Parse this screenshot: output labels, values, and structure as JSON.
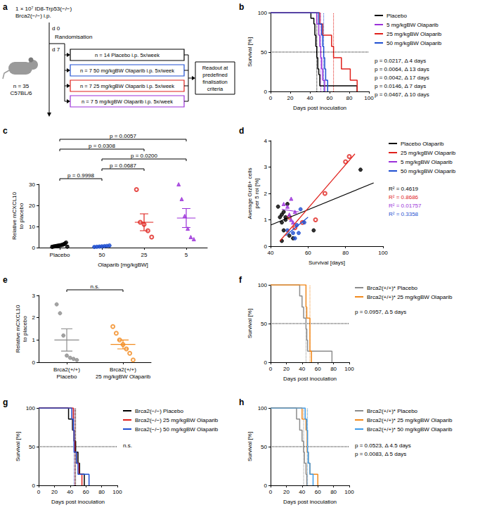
{
  "diagram": {
    "panel": "a",
    "inoculation": [
      "1 × 10⁷ ID8-Trp53(−/−)",
      "Brca2(−/−) i.p."
    ],
    "mice": [
      "n = 35",
      "C57BL/6"
    ],
    "day_start": "d 0",
    "day_randomisation": "d 7",
    "randomisation": "Randomisation",
    "groups": [
      {
        "text": "n = 14 Placebo i.p. 5x/week",
        "color": "#000000"
      },
      {
        "text": "n = 7 50 mg/kgBW Olaparib i.p. 5x/week",
        "color": "#1f4fd1"
      },
      {
        "text": "n = 7 25 mg/kgBW Olaparib i.p. 5x/week",
        "color": "#e0201b"
      },
      {
        "text": "n = 7 5 mg/kgBW Olaparib i.p. 5x/week",
        "color": "#9b30d9"
      }
    ],
    "readout": "Readout at predefined finalisation criteria"
  },
  "chart_data": [
    {
      "panel": "b",
      "type": "line",
      "line_style": "step",
      "x_label": "Days post inoculation",
      "y_label": "Survival [%]",
      "xlim": [
        0,
        100
      ],
      "xticks": [
        0,
        20,
        40,
        60,
        80,
        100
      ],
      "ylim": [
        0,
        100
      ],
      "yticks": [
        0,
        50,
        100
      ],
      "reference_y": 50,
      "grid": false,
      "legend": "right",
      "series": [
        {
          "name": "Placebo",
          "color": "#000000",
          "x": [
            0,
            41,
            44,
            45,
            46,
            47,
            48,
            49,
            50,
            88
          ],
          "values": [
            100,
            92.9,
            85.7,
            71.4,
            57.1,
            42.9,
            28.6,
            21.4,
            7.1,
            0
          ],
          "median": 47
        },
        {
          "name": "5 mg/kgBW Olaparib",
          "color": "#9b30d9",
          "x": [
            0,
            47,
            49,
            50,
            51,
            52,
            53,
            55
          ],
          "values": [
            100,
            85.7,
            71.4,
            57.1,
            42.9,
            28.6,
            14.3,
            0
          ],
          "median": 51
        },
        {
          "name": "25 mg/kgBW Olaparib",
          "color": "#e0201b",
          "x": [
            0,
            50,
            53,
            62,
            64,
            72,
            81,
            88
          ],
          "values": [
            100,
            85.7,
            71.4,
            57.1,
            42.9,
            28.6,
            14.3,
            0
          ],
          "median": 64
        },
        {
          "name": "50 mg/kgBW Olaparib",
          "color": "#1f4fd1",
          "x": [
            0,
            49,
            52,
            53,
            54,
            55,
            56,
            58
          ],
          "values": [
            100,
            85.7,
            71.4,
            57.1,
            42.9,
            28.6,
            14.3,
            0
          ],
          "median": 54
        }
      ],
      "annotations": [
        "p = 0.0217, Δ 4 days",
        "p = 0.0064, Δ 13 days",
        "p = 0.0042, Δ 17 days",
        "p = 0.0146, Δ 7 days",
        "p = 0.0467, Δ 10 days"
      ]
    },
    {
      "panel": "c",
      "type": "strip",
      "x_label": "Olaparib [mg/kgBW]",
      "y_label": "Relative mCXCL10 to placebo",
      "ylim": [
        0,
        30
      ],
      "yticks": [
        0,
        10,
        20,
        30
      ],
      "grid": false,
      "categories": [
        "Placebo",
        "50",
        "25",
        "5"
      ],
      "groups": [
        {
          "color": "#000000",
          "marker": "circle",
          "values": [
            0.3,
            0.5,
            0.6,
            0.7,
            0.8,
            0.9,
            1.0,
            1.1,
            1.2,
            1.4,
            1.6,
            2.0,
            2.4,
            0.4
          ],
          "mean": 1.0,
          "sem": 0.2
        },
        {
          "color": "#1f4fd1",
          "marker": "circle",
          "values": [
            0.3,
            0.4,
            0.5,
            0.6,
            0.7,
            0.8,
            1.0
          ],
          "mean": 0.6,
          "sem": 0.1
        },
        {
          "color": "#e0201b",
          "marker": "empty_circle",
          "values": [
            27.5,
            12,
            11,
            8,
            5
          ],
          "mean": 12,
          "sem": 4
        },
        {
          "color": "#9b30d9",
          "marker": "triangle",
          "values": [
            30,
            23,
            15,
            9,
            5,
            4
          ],
          "mean": 14,
          "sem": 4.5
        }
      ],
      "comparisons": [
        {
          "pair": [
            "Placebo",
            "50"
          ],
          "text": "p = 0.9998"
        },
        {
          "pair": [
            "50",
            "25"
          ],
          "text": "p = 0.0687"
        },
        {
          "pair": [
            "50",
            "5"
          ],
          "text": "p = 0.0200"
        },
        {
          "pair": [
            "Placebo",
            "25"
          ],
          "text": "p = 0.0308"
        },
        {
          "pair": [
            "Placebo",
            "5"
          ],
          "text": "p = 0.0057"
        }
      ]
    },
    {
      "panel": "d",
      "type": "scatter",
      "x_label": "Survival [days]",
      "y_label": "Average GrzB+ cells per 5 roi [%]",
      "xlim": [
        40,
        100
      ],
      "xticks": [
        40,
        60,
        80,
        100
      ],
      "ylim": [
        0,
        4
      ],
      "yticks": [
        0,
        1,
        2,
        3,
        4
      ],
      "grid": false,
      "legend": "right",
      "series": [
        {
          "name": "Placebo Olaparib",
          "color": "#000000",
          "marker": "circle",
          "x": [
            44,
            45,
            46,
            46,
            47,
            47,
            48,
            48,
            49,
            50,
            46,
            52,
            63,
            88
          ],
          "values": [
            1.5,
            1.1,
            1.2,
            0.9,
            1.3,
            0.6,
            1.0,
            1.1,
            1.6,
            0.4,
            0.2,
            0.3,
            0.6,
            2.9
          ],
          "fit": {
            "x": [
              40,
              95
            ],
            "values": [
              0.8,
              2.4
            ]
          },
          "annotation": "R² = 0.4619"
        },
        {
          "name": "25 mg/kgBW Olaparib",
          "color": "#e0201b",
          "marker": "empty_circle",
          "x": [
            50,
            53,
            57,
            64,
            69,
            80,
            82
          ],
          "values": [
            1.1,
            0.7,
            0.9,
            1.0,
            2.0,
            3.2,
            3.4
          ],
          "fit": {
            "x": [
              45,
              85
            ],
            "values": [
              0.2,
              3.5
            ]
          },
          "annotation": "R² = 0.8686"
        },
        {
          "name": "5 mg/kgBW Olaparib",
          "color": "#9b30d9",
          "marker": "triangle",
          "x": [
            47,
            49,
            50,
            51,
            51,
            52,
            53
          ],
          "values": [
            1.6,
            1.5,
            1.2,
            1.8,
            1.0,
            0.9,
            1.3
          ],
          "fit": {
            "x": [
              46,
              55
            ],
            "values": [
              1.4,
              1.3
            ]
          },
          "annotation": "R² = 0.01757"
        },
        {
          "name": "50 mg/kgBW Olaparib",
          "color": "#1f4fd1",
          "marker": "circle",
          "x": [
            49,
            52,
            53,
            54,
            55,
            56,
            58
          ],
          "values": [
            0.6,
            0.5,
            0.3,
            0.8,
            0.5,
            1.4,
            0.9
          ],
          "fit": {
            "x": [
              48,
              60
            ],
            "values": [
              0.4,
              1.1
            ]
          },
          "annotation": "R² = 0.3358"
        }
      ]
    },
    {
      "panel": "e",
      "type": "strip",
      "y_label": "Relative mCXCL10 to placebo",
      "ylim": [
        0,
        3
      ],
      "yticks": [
        0,
        1,
        2,
        3
      ],
      "grid": false,
      "categories": [
        "Brca2(+/+) Placebo",
        "Brca2(+/+) 25 mg/kgBW Olaparib"
      ],
      "groups": [
        {
          "color": "#8c8c8c",
          "marker": "circle",
          "values": [
            2.6,
            2.2,
            1.2,
            0.3,
            0.2,
            0.15,
            0.1
          ],
          "mean": 1.0,
          "sem": 0.5
        },
        {
          "color": "#f28a1e",
          "marker": "empty_circle",
          "values": [
            1.6,
            1.3,
            1.0,
            0.8,
            0.6,
            0.4,
            0.1
          ],
          "mean": 0.8,
          "sem": 0.2
        }
      ],
      "comparisons": [
        {
          "pair": [
            "Brca2(+/+) Placebo",
            "Brca2(+/+) 25 mg/kgBW Olaparib"
          ],
          "text": "n.s."
        }
      ]
    },
    {
      "panel": "f",
      "type": "line",
      "line_style": "step",
      "x_label": "Days post inoculation",
      "y_label": "Survival [%]",
      "xlim": [
        0,
        100
      ],
      "xticks": [
        0,
        20,
        40,
        60,
        80,
        100
      ],
      "ylim": [
        0,
        100
      ],
      "yticks": [
        0,
        50,
        100
      ],
      "reference_y": 50,
      "grid": false,
      "legend": "right",
      "series": [
        {
          "name": "Brca2(+/+)* Placebo",
          "color": "#8c8c8c",
          "x": [
            0,
            37,
            40,
            42,
            45,
            46,
            47,
            78
          ],
          "values": [
            100,
            85.7,
            71.4,
            57.1,
            42.9,
            28.6,
            14.3,
            0
          ],
          "median": 45
        },
        {
          "name": "Brca2(+/+)* 25 mg/kgBW Olaparib",
          "color": "#f28a1e",
          "x": [
            0,
            45,
            46,
            50,
            52
          ],
          "values": [
            100,
            71.4,
            57.1,
            14.3,
            0
          ],
          "median": 50
        }
      ],
      "annotations": [
        "p = 0.0957, Δ 5 days"
      ]
    },
    {
      "panel": "g",
      "type": "line",
      "line_style": "step",
      "x_label": "Days post inoculation",
      "y_label": "Survival [%]",
      "xlim": [
        0,
        100
      ],
      "xticks": [
        0,
        20,
        40,
        60,
        80,
        100
      ],
      "ylim": [
        0,
        100
      ],
      "yticks": [
        0,
        50,
        100
      ],
      "reference_y": 50,
      "grid": false,
      "legend": "right",
      "series": [
        {
          "name": "Brca2(−/−) Placebo",
          "color": "#000000",
          "x": [
            0,
            38,
            43,
            45,
            47,
            50,
            52,
            58
          ],
          "values": [
            100,
            85.7,
            71.4,
            57.1,
            42.9,
            28.6,
            14.3,
            0
          ],
          "median": 47
        },
        {
          "name": "Brca2(−/−) 25 mg/kgBW Olaparib",
          "color": "#e0201b",
          "x": [
            0,
            44,
            45,
            46,
            48,
            51,
            55
          ],
          "values": [
            100,
            71.4,
            57.1,
            42.9,
            28.6,
            14.3,
            0
          ],
          "median": 46
        },
        {
          "name": "Brca2(−/−) 50 mg/kgBW Olaparib",
          "color": "#1f4fd1",
          "x": [
            0,
            42,
            44,
            45,
            48,
            50,
            64
          ],
          "values": [
            100,
            85.7,
            71.4,
            42.9,
            28.6,
            14.3,
            0
          ],
          "median": 45
        }
      ],
      "annotations": [
        "n.s."
      ]
    },
    {
      "panel": "h",
      "type": "line",
      "line_style": "step",
      "x_label": "Days post inoculation",
      "y_label": "Survival [%]",
      "xlim": [
        0,
        100
      ],
      "xticks": [
        0,
        20,
        40,
        60,
        80,
        100
      ],
      "ylim": [
        0,
        100
      ],
      "yticks": [
        0,
        50,
        100
      ],
      "reference_y": 50,
      "grid": false,
      "legend": "right",
      "series": [
        {
          "name": "Brca2(+/+)* Placebo",
          "color": "#8c8c8c",
          "x": [
            0,
            33,
            37,
            40,
            42,
            43,
            45,
            46
          ],
          "values": [
            100,
            85.7,
            71.4,
            57.1,
            42.9,
            28.6,
            14.3,
            0
          ],
          "median": 42
        },
        {
          "name": "Brca2(+/+)* 25 mg/kgBW Olaparib",
          "color": "#f28a1e",
          "x": [
            0,
            40,
            45,
            46.5,
            48,
            50,
            60
          ],
          "values": [
            100,
            85.7,
            71.4,
            42.9,
            28.6,
            14.3,
            0
          ],
          "median": 46.5
        },
        {
          "name": "Brca2(+/+)* 50 mg/kgBW Olaparib",
          "color": "#3d9be9",
          "x": [
            0,
            44,
            46,
            47,
            48,
            50,
            54
          ],
          "values": [
            100,
            85.7,
            71.4,
            42.9,
            28.6,
            14.3,
            0
          ],
          "median": 47
        }
      ],
      "annotations": [
        "p = 0.0523, Δ 4.5 days",
        "p = 0.0083, Δ 5 days"
      ]
    }
  ]
}
